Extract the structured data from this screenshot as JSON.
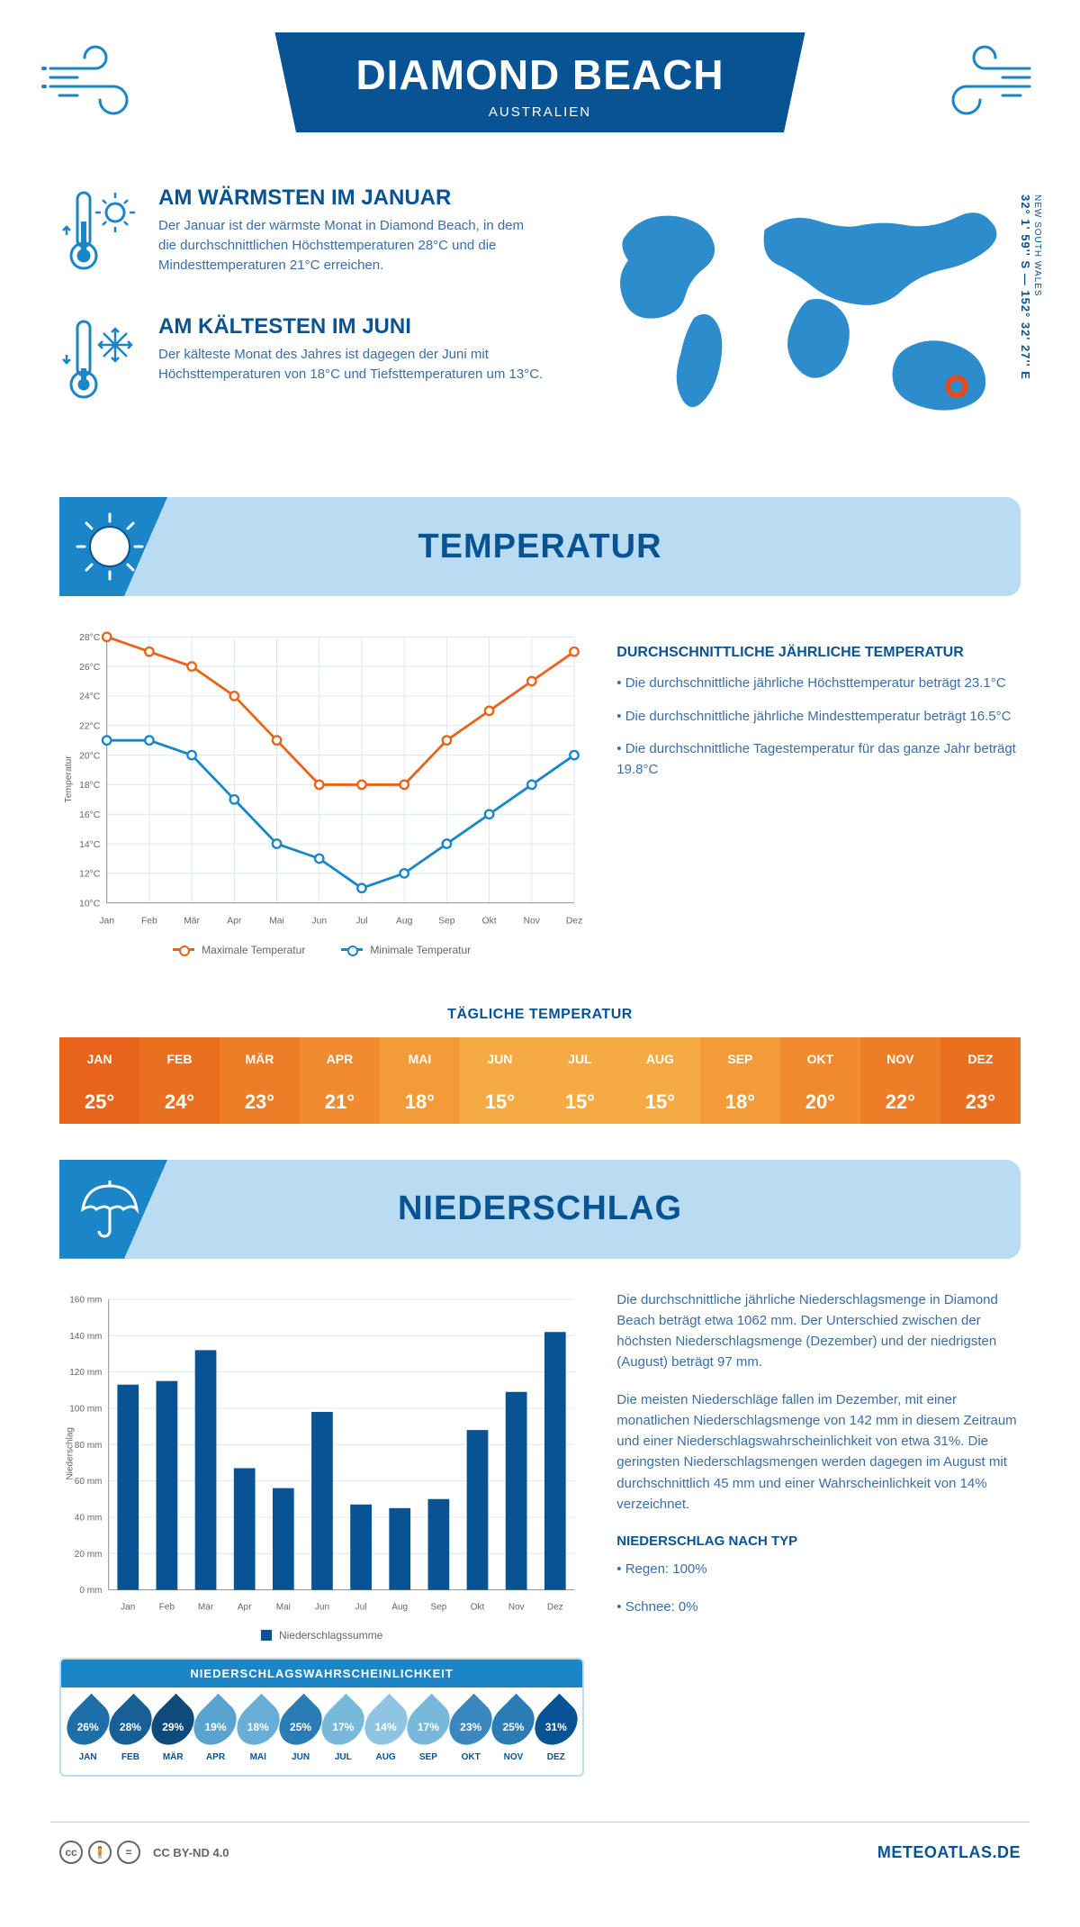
{
  "header": {
    "title": "DIAMOND BEACH",
    "subtitle": "AUSTRALIEN",
    "coords": "32° 1' 59'' S — 152° 32' 27'' E",
    "region": "NEW SOUTH WALES"
  },
  "colors": {
    "primary": "#085394",
    "accent": "#1a85c7",
    "light": "#b9dcf2",
    "orange": "#e8641b",
    "marker": "#e84b1b"
  },
  "facts": {
    "warm": {
      "title": "AM WÄRMSTEN IM JANUAR",
      "body": "Der Januar ist der wärmste Monat in Diamond Beach, in dem die durchschnittlichen Höchsttemperaturen 28°C und die Mindesttemperaturen 21°C erreichen."
    },
    "cold": {
      "title": "AM KÄLTESTEN IM JUNI",
      "body": "Der kälteste Monat des Jahres ist dagegen der Juni mit Höchsttemperaturen von 18°C und Tiefsttemperaturen um 13°C."
    }
  },
  "sections": {
    "temperature": "TEMPERATUR",
    "precipitation": "NIEDERSCHLAG"
  },
  "temp_chart": {
    "type": "line",
    "months": [
      "Jan",
      "Feb",
      "Mär",
      "Apr",
      "Mai",
      "Jun",
      "Jul",
      "Aug",
      "Sep",
      "Okt",
      "Nov",
      "Dez"
    ],
    "max_values": [
      28,
      27,
      26,
      24,
      21,
      18,
      18,
      18,
      21,
      23,
      25,
      27
    ],
    "min_values": [
      21,
      21,
      20,
      17,
      14,
      13,
      11,
      12,
      14,
      16,
      18,
      20
    ],
    "max_color": "#e8641b",
    "min_color": "#1a85c7",
    "ylim": [
      10,
      28
    ],
    "ytick_step": 2,
    "ylabel": "Temperatur",
    "grid_color": "#d9e6f2",
    "axis_color": "#888",
    "legend_max": "Maximale Temperatur",
    "legend_min": "Minimale Temperatur",
    "background": "#ffffff"
  },
  "temp_summary": {
    "title": "DURCHSCHNITTLICHE JÄHRLICHE TEMPERATUR",
    "p1": "• Die durchschnittliche jährliche Höchsttemperatur beträgt 23.1°C",
    "p2": "• Die durchschnittliche jährliche Mindesttemperatur beträgt 16.5°C",
    "p3": "• Die durchschnittliche Tagestemperatur für das ganze Jahr beträgt 19.8°C"
  },
  "daily_temp": {
    "title": "TÄGLICHE TEMPERATUR",
    "months": [
      "JAN",
      "FEB",
      "MÄR",
      "APR",
      "MAI",
      "JUN",
      "JUL",
      "AUG",
      "SEP",
      "OKT",
      "NOV",
      "DEZ"
    ],
    "values": [
      "25°",
      "24°",
      "23°",
      "21°",
      "18°",
      "15°",
      "15°",
      "15°",
      "18°",
      "20°",
      "22°",
      "23°"
    ],
    "header_colors": [
      "#e8641b",
      "#ea7020",
      "#ed7d27",
      "#f08b2f",
      "#f39b38",
      "#f6aa43",
      "#f6aa43",
      "#f6aa43",
      "#f39b38",
      "#f08b2f",
      "#ed7d27",
      "#ea7020"
    ],
    "value_colors": [
      "#e8641b",
      "#ea7020",
      "#ed7d27",
      "#f08b2f",
      "#f39b38",
      "#f6aa43",
      "#f6aa43",
      "#f6aa43",
      "#f39b38",
      "#f08b2f",
      "#ed7d27",
      "#ea7020"
    ]
  },
  "precip_chart": {
    "type": "bar",
    "months": [
      "Jan",
      "Feb",
      "Mär",
      "Apr",
      "Mai",
      "Jun",
      "Jul",
      "Aug",
      "Sep",
      "Okt",
      "Nov",
      "Dez"
    ],
    "values": [
      113,
      115,
      132,
      67,
      56,
      98,
      47,
      45,
      50,
      88,
      109,
      142
    ],
    "bar_color": "#085394",
    "ylim": [
      0,
      160
    ],
    "ytick_step": 20,
    "ylabel": "Niederschlag",
    "y_unit": "mm",
    "grid_color": "#d9e6f2",
    "axis_color": "#888",
    "legend": "Niederschlagssumme",
    "background": "#ffffff"
  },
  "precip_text": {
    "p1": "Die durchschnittliche jährliche Niederschlagsmenge in Diamond Beach beträgt etwa 1062 mm. Der Unterschied zwischen der höchsten Niederschlagsmenge (Dezember) und der niedrigsten (August) beträgt 97 mm.",
    "p2": "Die meisten Niederschläge fallen im Dezember, mit einer monatlichen Niederschlagsmenge von 142 mm in diesem Zeitraum und einer Niederschlagswahrscheinlichkeit von etwa 31%. Die geringsten Niederschlagsmengen werden dagegen im August mit durchschnittlich 45 mm und einer Wahrscheinlichkeit von 14% verzeichnet.",
    "type_title": "NIEDERSCHLAG NACH TYP",
    "type_rain": "• Regen: 100%",
    "type_snow": "• Schnee: 0%"
  },
  "probability": {
    "title": "NIEDERSCHLAGSWAHRSCHEINLICHKEIT",
    "months": [
      "JAN",
      "FEB",
      "MÄR",
      "APR",
      "MAI",
      "JUN",
      "JUL",
      "AUG",
      "SEP",
      "OKT",
      "NOV",
      "DEZ"
    ],
    "values": [
      "26%",
      "28%",
      "29%",
      "19%",
      "18%",
      "25%",
      "17%",
      "14%",
      "17%",
      "23%",
      "25%",
      "31%"
    ],
    "colors": [
      "#1e6fa8",
      "#175f94",
      "#0f4b7a",
      "#5aa3d0",
      "#68aed6",
      "#2a7cb4",
      "#77b8db",
      "#8fc5e2",
      "#77b8db",
      "#3a88bd",
      "#2a7cb4",
      "#085394"
    ]
  },
  "footer": {
    "license": "CC BY-ND 4.0",
    "site": "METEOATLAS.DE"
  }
}
